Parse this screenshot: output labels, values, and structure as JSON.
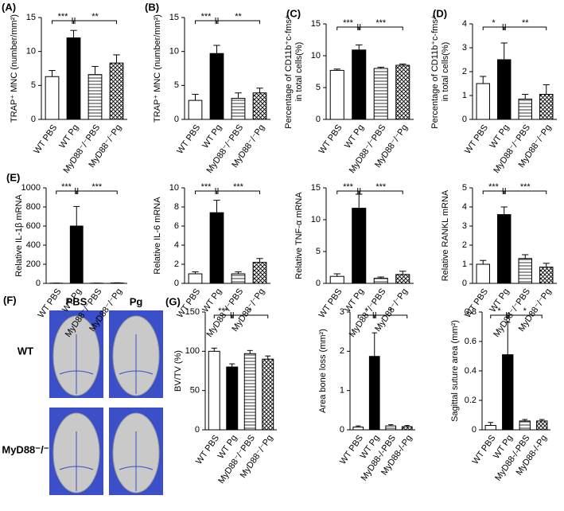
{
  "chart_data": [
    {
      "type": "bar",
      "panel_label": "(A)",
      "y_label": [
        "TRAP⁺ MNC (number/mm²)"
      ],
      "categories": [
        "WT PBS",
        "WT Pg",
        "MyD88⁻/⁻PBS",
        "MyD88⁻/⁻Pg"
      ],
      "values": [
        6.3,
        12.0,
        6.6,
        8.3
      ],
      "errors": [
        0.9,
        1.1,
        1.2,
        1.2
      ],
      "ylim": [
        0,
        15
      ],
      "yticks": [
        0,
        5,
        10,
        15
      ],
      "significance": [
        "***",
        "**"
      ],
      "bar_styles": [
        "open",
        "solid",
        "striped",
        "checkered"
      ]
    },
    {
      "type": "bar",
      "panel_label": "(B)",
      "y_label": [
        "TRAP⁺ MNC (number/mm²)"
      ],
      "categories": [
        "WT PBS",
        "WT Pg",
        "MyD88⁻/⁻PBS",
        "MyD88⁻/⁻Pg"
      ],
      "values": [
        2.8,
        9.7,
        3.1,
        3.9
      ],
      "errors": [
        0.9,
        1.2,
        0.8,
        0.7
      ],
      "ylim": [
        0,
        15
      ],
      "yticks": [
        0,
        5,
        10,
        15
      ],
      "significance": [
        "***",
        "**"
      ],
      "bar_styles": [
        "open",
        "solid",
        "striped",
        "checkered"
      ]
    },
    {
      "type": "bar",
      "panel_label": "(C)",
      "y_label": [
        "Percentage of CD11b⁺c-fms⁺",
        "in total cells(%)"
      ],
      "categories": [
        "WT PBS",
        "WT Pg",
        "MyD88⁻/⁻PBS",
        "MyD88⁻/⁻Pg"
      ],
      "values": [
        7.7,
        10.9,
        8.0,
        8.5
      ],
      "errors": [
        0.2,
        0.8,
        0.2,
        0.2
      ],
      "ylim": [
        0,
        15
      ],
      "yticks": [
        0,
        5,
        10,
        15
      ],
      "significance": [
        "***",
        "***"
      ],
      "bar_styles": [
        "open",
        "solid",
        "striped",
        "checkered"
      ]
    },
    {
      "type": "bar",
      "panel_label": "(D)",
      "y_label": [
        "Percentage of CD11b⁺c-fms⁺",
        "in total cells(%)"
      ],
      "categories": [
        "WT PBS",
        "WT Pg",
        "MyD88⁻/⁻PBS",
        "MyD88⁻/⁻Pg"
      ],
      "values": [
        1.5,
        2.5,
        0.85,
        1.05
      ],
      "errors": [
        0.3,
        0.7,
        0.2,
        0.4
      ],
      "ylim": [
        0,
        4
      ],
      "yticks": [
        0,
        1,
        2,
        3,
        4
      ],
      "significance": [
        "*",
        "**"
      ],
      "bar_styles": [
        "open",
        "solid",
        "striped",
        "checkered"
      ]
    },
    {
      "type": "bar",
      "panel_label": "(E)",
      "y_label": [
        "Relative IL-1β mRNA"
      ],
      "categories": [
        "WT PBS",
        "WT Pg",
        "MyD88⁻/⁻PBS",
        "MyD88⁻/⁻Pg"
      ],
      "values": [
        2,
        600,
        2,
        4
      ],
      "errors": [
        1,
        205,
        1,
        2
      ],
      "ylim": [
        0,
        1000
      ],
      "yticks": [
        0,
        200,
        400,
        600,
        800,
        1000
      ],
      "significance": [
        "***",
        "***"
      ],
      "bar_styles": [
        "open",
        "solid",
        "striped",
        "checkered"
      ]
    },
    {
      "type": "bar",
      "y_label": [
        "Relative IL-6 mRNA"
      ],
      "categories": [
        "WT PBS",
        "WT Pg",
        "MyD88⁻/⁻PBS",
        "MyD88⁻/⁻Pg"
      ],
      "values": [
        1.0,
        7.4,
        1.0,
        2.2
      ],
      "errors": [
        0.2,
        1.3,
        0.2,
        0.4
      ],
      "ylim": [
        0,
        10
      ],
      "yticks": [
        0,
        2,
        4,
        6,
        8,
        10
      ],
      "significance": [
        "***",
        "***"
      ],
      "bar_styles": [
        "open",
        "solid",
        "striped",
        "checkered"
      ]
    },
    {
      "type": "bar",
      "y_label": [
        "Relative TNF-α mRNA"
      ],
      "categories": [
        "WT PBS",
        "WT Pg",
        "MyD88⁻/⁻PBS",
        "MyD88⁻/⁻Pg"
      ],
      "values": [
        1.1,
        11.8,
        0.8,
        1.4
      ],
      "errors": [
        0.4,
        2.2,
        0.2,
        0.5
      ],
      "ylim": [
        0,
        15
      ],
      "yticks": [
        0,
        5,
        10,
        15
      ],
      "significance": [
        "***",
        "***"
      ],
      "bar_styles": [
        "open",
        "solid",
        "striped",
        "checkered"
      ]
    },
    {
      "type": "bar",
      "y_label": [
        "Relative RANKL mRNA"
      ],
      "categories": [
        "WT PBS",
        "WT Pg",
        "MyD88⁻/⁻PBS",
        "MyD88⁻/⁻Pg"
      ],
      "values": [
        1.0,
        3.6,
        1.3,
        0.85
      ],
      "errors": [
        0.2,
        0.4,
        0.2,
        0.2
      ],
      "ylim": [
        0,
        5
      ],
      "yticks": [
        0,
        1,
        2,
        3,
        4,
        5
      ],
      "significance": [
        "***",
        "***"
      ],
      "bar_styles": [
        "open",
        "solid",
        "striped",
        "checkered"
      ]
    },
    {
      "type": "bar",
      "panel_label": "(G)",
      "y_label": [
        "BV/TV (%)"
      ],
      "categories": [
        "WT PBS",
        "WT Pg",
        "MyD88⁻/⁻PBS",
        "MyD88⁻/⁻Pg"
      ],
      "values": [
        100,
        80,
        97,
        90
      ],
      "errors": [
        4,
        4,
        4,
        4
      ],
      "ylim": [
        0,
        150
      ],
      "yticks": [
        0,
        50,
        100,
        150
      ],
      "significance": [
        "***",
        "*"
      ],
      "bar_styles": [
        "open",
        "solid",
        "striped",
        "checkered"
      ]
    },
    {
      "type": "bar",
      "y_label": [
        "Area bone loss (mm²)"
      ],
      "categories": [
        "WT PBS",
        "WT Pg",
        "MyD88-/-PBS",
        "MyD88-/-Pg"
      ],
      "values": [
        0.07,
        1.87,
        0.1,
        0.08
      ],
      "errors": [
        0.03,
        0.6,
        0.03,
        0.03
      ],
      "ylim": [
        0,
        3
      ],
      "yticks": [
        0,
        1,
        2,
        3
      ],
      "significance": [
        "*",
        "*"
      ],
      "bar_styles": [
        "open",
        "solid",
        "striped",
        "checkered"
      ]
    },
    {
      "type": "bar",
      "y_label": [
        "Sagittal suture area (mm²)"
      ],
      "categories": [
        "WT PBS",
        "WT Pg",
        "MyD88-/-PBS",
        "MyD88-/-Pg"
      ],
      "values": [
        0.03,
        0.51,
        0.06,
        0.06
      ],
      "errors": [
        0.02,
        0.22,
        0.01,
        0.01
      ],
      "ylim": [
        0,
        0.8
      ],
      "yticks": [
        0,
        0.2,
        0.4,
        0.6,
        0.8
      ],
      "significance": [
        "*",
        "*"
      ],
      "bar_styles": [
        "open",
        "solid",
        "striped",
        "checkered"
      ]
    }
  ],
  "photo_panel": {
    "panel_label": "(F)",
    "columns": [
      "PBS",
      "Pg"
    ],
    "rows": [
      "WT",
      "MyD88⁻/⁻"
    ]
  }
}
